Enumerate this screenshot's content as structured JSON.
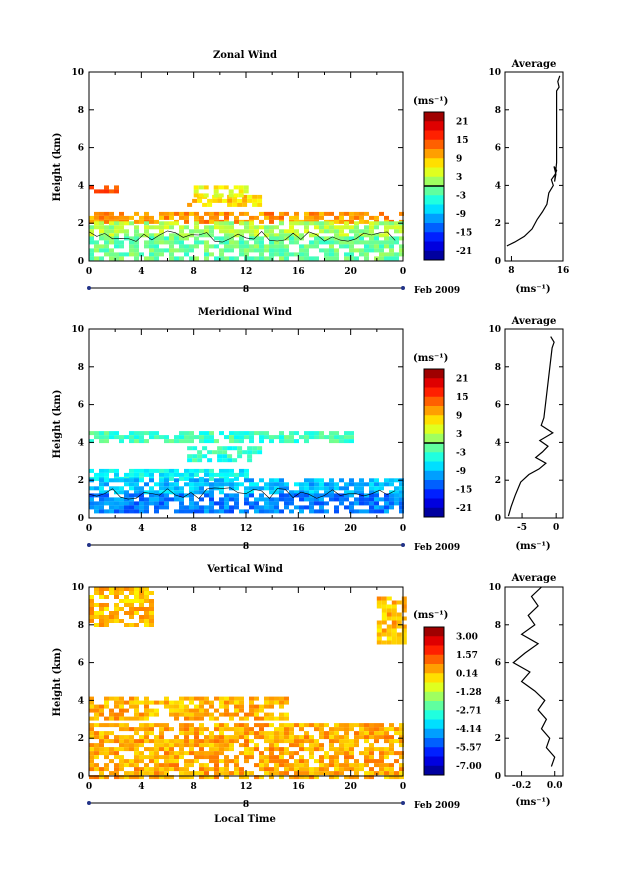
{
  "panels": [
    {
      "title": "Zonal Wind",
      "ylabel": "Height (km)",
      "xticks": [
        "0",
        "4",
        "8",
        "12",
        "16",
        "20",
        "0"
      ],
      "day_label": "8",
      "date_label": "Feb 2009",
      "unit": "(ms⁻¹)",
      "colorbar_ticks": [
        "21",
        "15",
        "9",
        "3",
        "-3",
        "-9",
        "-15",
        "-21"
      ],
      "avg_title": "Average",
      "avg_xticks": [
        "8",
        "16"
      ],
      "avg_unit": "(ms⁻¹)"
    },
    {
      "title": "Meridional Wind",
      "ylabel": "Height (km)",
      "xticks": [
        "0",
        "4",
        "8",
        "12",
        "16",
        "20",
        "0"
      ],
      "day_label": "8",
      "date_label": "Feb 2009",
      "unit": "(ms⁻¹)",
      "colorbar_ticks": [
        "21",
        "15",
        "9",
        "3",
        "-3",
        "-9",
        "-15",
        "-21"
      ],
      "avg_title": "Average",
      "avg_xticks": [
        "-5",
        "0"
      ],
      "avg_unit": "(ms⁻¹)"
    },
    {
      "title": "Vertical Wind",
      "ylabel": "Height (km)",
      "xticks": [
        "0",
        "4",
        "8",
        "12",
        "16",
        "20",
        "0"
      ],
      "day_label": "8",
      "date_label": "Feb 2009",
      "xlabel": "Local Time",
      "unit": "(ms⁻¹)",
      "colorbar_ticks": [
        "3.00",
        "1.57",
        "0.14",
        "-1.28",
        "-2.71",
        "-4.14",
        "-5.57",
        "-7.00"
      ],
      "avg_title": "Average",
      "avg_xticks": [
        "-0.2",
        "0.0"
      ],
      "avg_unit": "(ms⁻¹)"
    }
  ],
  "chart_data": [
    {
      "type": "heatmap",
      "title": "Zonal Wind",
      "ylabel": "Height (km)",
      "x_range_hours": [
        0,
        24
      ],
      "ylim": [
        0,
        10
      ],
      "color_range": [
        -24,
        24
      ],
      "colorbar_ticks": [
        21,
        15,
        9,
        3,
        -3,
        -9,
        -15,
        -21
      ],
      "layers": [
        {
          "y_range": [
            3.6,
            4.0
          ],
          "x_range": [
            0,
            2
          ],
          "value": 15
        },
        {
          "y_range": [
            2.9,
            3.5
          ],
          "x_range": [
            7.5,
            13
          ],
          "value": 8
        },
        {
          "y_range": [
            3.5,
            4.0
          ],
          "x_range": [
            8,
            12
          ],
          "value": 6
        },
        {
          "y_range": [
            2.1,
            2.6
          ],
          "x_range": [
            0,
            24
          ],
          "value": 11
        },
        {
          "y_range": [
            1.3,
            2.1
          ],
          "x_range": [
            0,
            24
          ],
          "value": 2
        },
        {
          "y_range": [
            0.2,
            1.3
          ],
          "x_range": [
            0,
            24
          ],
          "value": -1
        }
      ],
      "contour_level": 0
    },
    {
      "type": "line",
      "title": "Average",
      "xlim": [
        7,
        16
      ],
      "xticks": [
        8,
        16
      ],
      "ylim": [
        0,
        10
      ],
      "xlabel": "(ms⁻¹)",
      "x": [
        7.3,
        8.5,
        10.0,
        11.2,
        12.0,
        12.8,
        13.5,
        13.8,
        14.5,
        14.2,
        14.8,
        15.0,
        14.6,
        14.9,
        14.7,
        15.0,
        15.0,
        15.4,
        15.2,
        15.5
      ],
      "y": [
        0.8,
        1.0,
        1.3,
        1.7,
        2.2,
        2.6,
        3.0,
        3.6,
        4.0,
        4.3,
        4.6,
        4.8,
        5.0,
        4.6,
        4.2,
        5.2,
        9.0,
        9.2,
        9.5,
        9.8
      ]
    },
    {
      "type": "heatmap",
      "title": "Meridional Wind",
      "ylabel": "Height (km)",
      "x_range_hours": [
        0,
        24
      ],
      "ylim": [
        0,
        10
      ],
      "color_range": [
        -24,
        24
      ],
      "colorbar_ticks": [
        21,
        15,
        9,
        3,
        -3,
        -9,
        -15,
        -21
      ],
      "layers": [
        {
          "y_range": [
            4.0,
            4.6
          ],
          "x_range": [
            0,
            20
          ],
          "value": -3
        },
        {
          "y_range": [
            3.0,
            3.8
          ],
          "x_range": [
            7.5,
            13
          ],
          "value": -4
        },
        {
          "y_range": [
            2.1,
            2.6
          ],
          "x_range": [
            0,
            12
          ],
          "value": -6
        },
        {
          "y_range": [
            1.3,
            2.1
          ],
          "x_range": [
            0,
            24
          ],
          "value": -9
        },
        {
          "y_range": [
            0.4,
            1.3
          ],
          "x_range": [
            0,
            24
          ],
          "value": -12
        }
      ],
      "contour_level": 0
    },
    {
      "type": "line",
      "title": "Average",
      "xlim": [
        -7.5,
        1
      ],
      "xticks": [
        -5,
        0
      ],
      "ylim": [
        0,
        10
      ],
      "xlabel": "(ms⁻¹)",
      "x": [
        -7.0,
        -6.6,
        -6.0,
        -5.2,
        -4.0,
        -2.5,
        -1.5,
        -3.0,
        -2.0,
        -1.2,
        -2.4,
        -0.5,
        -2.2,
        -1.8,
        -0.6,
        -0.3,
        -0.8
      ],
      "y": [
        0.1,
        0.6,
        1.2,
        1.9,
        2.3,
        2.6,
        2.9,
        3.2,
        3.5,
        3.8,
        4.1,
        4.5,
        4.9,
        5.3,
        9.0,
        9.3,
        9.6
      ]
    },
    {
      "type": "heatmap",
      "title": "Vertical Wind",
      "ylabel": "Height (km)",
      "xlabel": "Local Time",
      "x_range_hours": [
        0,
        24
      ],
      "ylim": [
        0,
        10
      ],
      "color_range": [
        -8,
        4
      ],
      "colorbar_ticks": [
        3.0,
        1.57,
        0.14,
        -1.28,
        -2.71,
        -4.14,
        -5.57,
        -7.0
      ],
      "layers": [
        {
          "y_range": [
            8.0,
            10.0
          ],
          "x_range": [
            0,
            5
          ],
          "value": 0.3
        },
        {
          "y_range": [
            7.0,
            9.5
          ],
          "x_range": [
            22,
            24
          ],
          "value": 0.3
        },
        {
          "y_range": [
            3.0,
            4.2
          ],
          "x_range": [
            0,
            15
          ],
          "value": 0.4
        },
        {
          "y_range": [
            0.0,
            2.8
          ],
          "x_range": [
            0,
            24
          ],
          "value": 0.5
        }
      ]
    },
    {
      "type": "line",
      "title": "Average",
      "xlim": [
        -0.3,
        0.05
      ],
      "xticks": [
        -0.2,
        0.0
      ],
      "ylim": [
        0,
        10
      ],
      "xlabel": "(ms⁻¹)",
      "x": [
        -0.02,
        0.0,
        -0.05,
        -0.03,
        -0.08,
        -0.05,
        -0.1,
        -0.06,
        -0.12,
        -0.2,
        -0.15,
        -0.25,
        -0.18,
        -0.1,
        -0.2,
        -0.12,
        -0.16,
        -0.1,
        -0.14,
        -0.08
      ],
      "y": [
        0.5,
        1.0,
        1.5,
        2.0,
        2.5,
        3.0,
        3.5,
        4.0,
        4.5,
        5.0,
        5.5,
        6.0,
        6.5,
        7.0,
        7.5,
        8.0,
        8.5,
        9.0,
        9.5,
        10.0
      ]
    }
  ]
}
